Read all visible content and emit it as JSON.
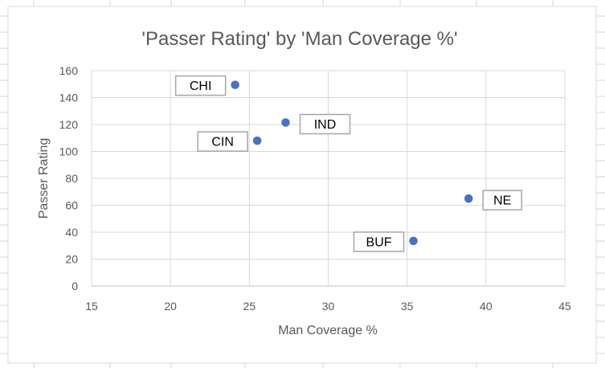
{
  "chart_data": {
    "type": "scatter",
    "title": "'Passer Rating' by 'Man Coverage %'",
    "xlabel": "Man Coverage %",
    "ylabel": "Passer Rating",
    "xlim": [
      15,
      45
    ],
    "ylim": [
      0,
      160
    ],
    "xticks": [
      15,
      20,
      25,
      30,
      35,
      40,
      45
    ],
    "yticks": [
      0,
      20,
      40,
      60,
      80,
      100,
      120,
      140,
      160
    ],
    "grid": true,
    "marker_color": "#4472C4",
    "points": [
      {
        "label": "CHI",
        "x": 24.1,
        "y": 149.5,
        "label_side": "left"
      },
      {
        "label": "IND",
        "x": 27.3,
        "y": 121.5,
        "label_side": "right"
      },
      {
        "label": "CIN",
        "x": 25.5,
        "y": 108.0,
        "label_side": "left"
      },
      {
        "label": "NE",
        "x": 38.9,
        "y": 65.0,
        "label_side": "right"
      },
      {
        "label": "BUF",
        "x": 35.4,
        "y": 33.5,
        "label_side": "left"
      }
    ]
  }
}
